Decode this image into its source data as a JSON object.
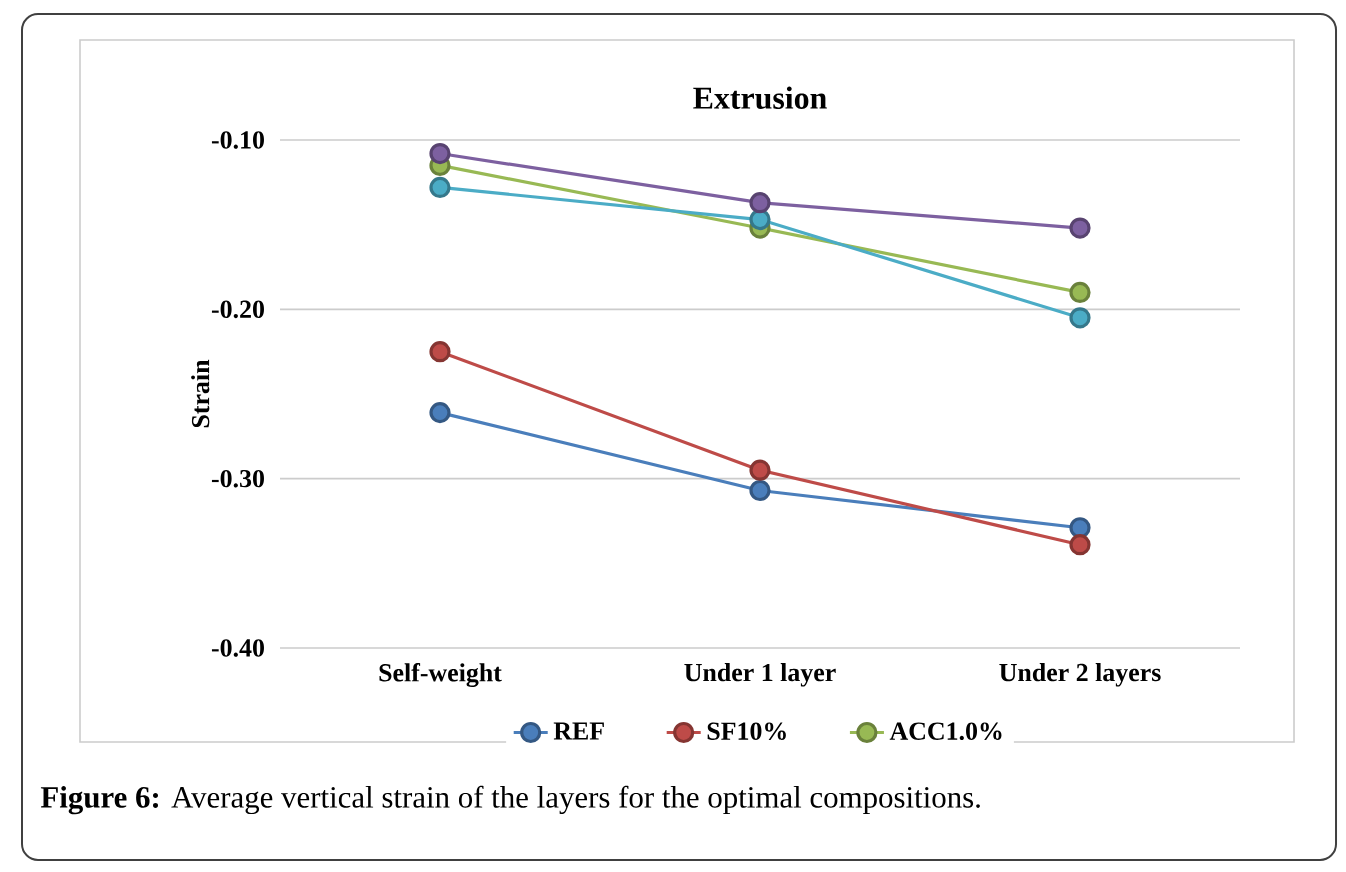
{
  "chart_data": {
    "type": "line",
    "title": "Extrusion",
    "ylabel": "Strain",
    "categories": [
      "Self-weight",
      "Under 1 layer",
      "Under 2 layers"
    ],
    "series": [
      {
        "name": "REF",
        "color": "#4a7ebb",
        "values": [
          -0.261,
          -0.307,
          -0.329
        ]
      },
      {
        "name": "SF10%",
        "color": "#be4b48",
        "values": [
          -0.225,
          -0.295,
          -0.339
        ]
      },
      {
        "name": "ACC1.0%",
        "color": "#98b954",
        "values": [
          -0.115,
          -0.152,
          -0.19
        ]
      },
      {
        "color": "#4bacc6",
        "values": [
          -0.128,
          -0.147,
          -0.205
        ]
      },
      {
        "color": "#7d60a0",
        "values": [
          -0.108,
          -0.137,
          -0.152
        ]
      }
    ],
    "ylim": [
      -0.4,
      -0.1
    ],
    "yticks": [
      {
        "value": -0.4,
        "label": "-0.40"
      },
      {
        "value": -0.3,
        "label": "-0.30"
      },
      {
        "value": -0.2,
        "label": "-0.20"
      },
      {
        "value": -0.1,
        "label": "-0.10"
      }
    ],
    "grid": "y",
    "legend": "bottom",
    "marker": "circle",
    "line_style": "solid",
    "annotations": [
      "**Figure 6:** Average vertical strain of the layers for the optimal compositions."
    ]
  }
}
